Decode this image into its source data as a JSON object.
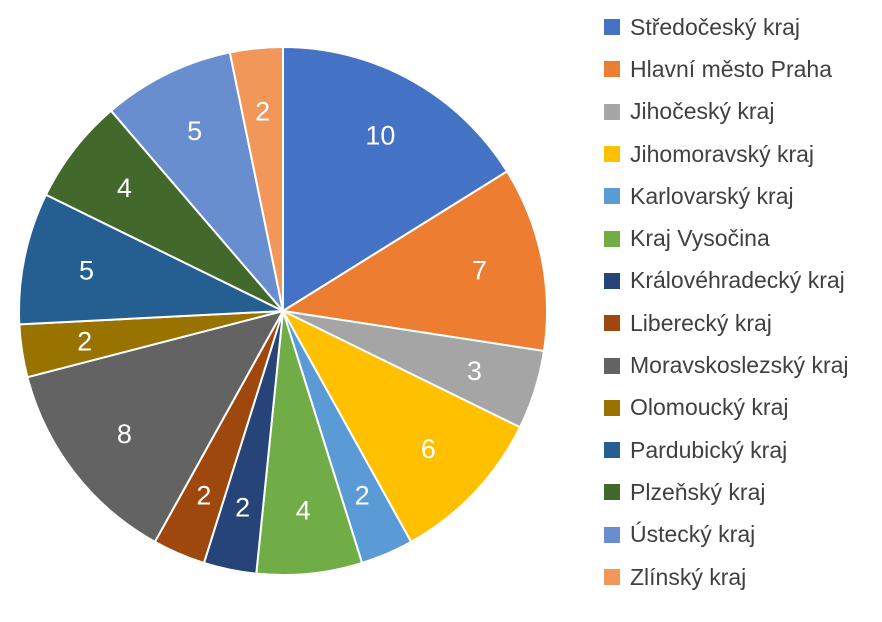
{
  "chart_data": {
    "type": "pie",
    "title": "",
    "legend_position": "right",
    "labels_inside": true,
    "series": [
      {
        "values": [
          10,
          7,
          3,
          6,
          2,
          4,
          2,
          2,
          8,
          2,
          5,
          4,
          5,
          2
        ]
      }
    ],
    "categories": [
      "Středočeský kraj",
      "Hlavní město Praha",
      "Jihočeský kraj",
      "Jihomoravský kraj",
      "Karlovarský kraj",
      "Kraj Vysočina",
      "Královéhradecký kraj",
      "Liberecký kraj",
      "Moravskoslezský kraj",
      "Olomoucký kraj",
      "Pardubický kraj",
      "Plzeňský kraj",
      "Ústecký kraj",
      "Zlínský kraj"
    ],
    "colors": [
      "#4472C4",
      "#ED7D31",
      "#A5A5A5",
      "#FFC000",
      "#5B9BD5",
      "#70AD47",
      "#264478",
      "#9E480E",
      "#636363",
      "#997300",
      "#255E91",
      "#43682B",
      "#698ED0",
      "#F1975A"
    ]
  }
}
